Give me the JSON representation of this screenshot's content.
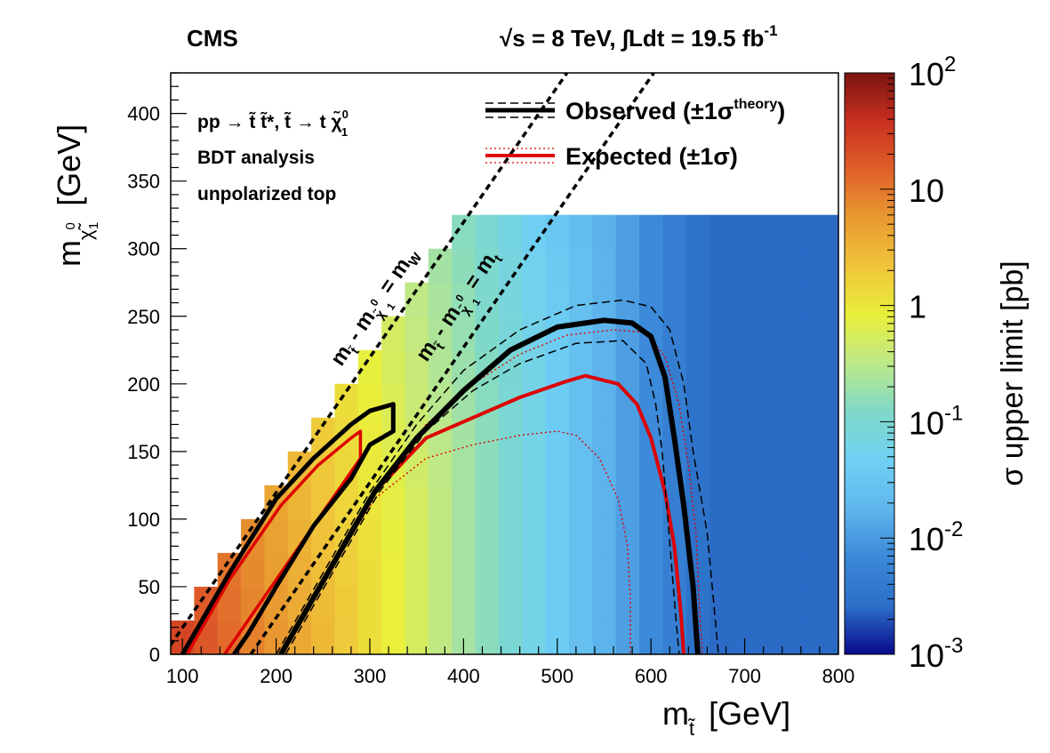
{
  "header": {
    "experiment": "CMS",
    "energy": "√s = 8 TeV, ∫Ldt = 19.5 fb",
    "lumi_exp": "-1"
  },
  "info": {
    "process_a": "pp → t̃ t̃*, t̃ → t χ̃",
    "process_sup": "0",
    "process_sub": "1",
    "line2": "BDT analysis",
    "line3": "unpolarized top"
  },
  "legend": {
    "observed": "Observed (±1σ",
    "observed_sup": "theory",
    "observed_end": ")",
    "expected": "Expected (±1σ)"
  },
  "diagonals": {
    "mw_a": "m",
    "mw_sub_stop": "t̃",
    "mw_b": " - m",
    "mw_sub_lsp": "χ̃",
    "mw_sup_lsp": "0",
    "mw_sub_1": "1",
    "mw_c": " = m",
    "mw_sub_w": "W",
    "mt_a": "m",
    "mt_sub_stop": "t̃",
    "mt_b": " - m",
    "mt_sub_lsp": "χ̃",
    "mt_sup_lsp": "0",
    "mt_sub_1": "1",
    "mt_c": " = m",
    "mt_sub_t": "t"
  },
  "colors": {
    "observed": "#000000",
    "expected": "#dd0000",
    "palette": [
      "#0a0a8c",
      "#2c6fc8",
      "#3b88d8",
      "#5fb6ec",
      "#6fd0f4",
      "#7fd9c8",
      "#bde88a",
      "#e9ef3a",
      "#f0c53a",
      "#e89a30",
      "#e0602a",
      "#c83020",
      "#7a1410"
    ]
  },
  "chart_data": {
    "type": "heatmap",
    "xlabel": "m",
    "xlabel_sub": "t̃",
    "xlabel_unit": "[GeV]",
    "ylabel": "m",
    "ylabel_sub": "χ̃",
    "ylabel_sup": "0",
    "ylabel_sub2": "1",
    "ylabel_unit": "[GeV]",
    "zlabel": "σ upper limit [pb]",
    "xlim": [
      87.5,
      800
    ],
    "ylim": [
      0,
      430
    ],
    "zlim": [
      0.001,
      100
    ],
    "zscale": "log",
    "x_ticks": [
      100,
      200,
      300,
      400,
      500,
      600,
      700,
      800
    ],
    "y_ticks": [
      0,
      50,
      100,
      150,
      200,
      250,
      300,
      350,
      400
    ],
    "z_ticks": [
      {
        "base": "10",
        "exp": "2",
        "value": 100
      },
      {
        "base": "10",
        "exp": "",
        "value": 10
      },
      {
        "base": "1",
        "exp": "",
        "value": 1
      },
      {
        "base": "10",
        "exp": "-1",
        "value": 0.1
      },
      {
        "base": "10",
        "exp": "-2",
        "value": 0.01
      },
      {
        "base": "10",
        "exp": "-3",
        "value": 0.001
      }
    ],
    "grid": {
      "x_min": 87.5,
      "x_max": 800,
      "x_step": 25,
      "y_min": 0,
      "y_max": 312.5,
      "y_step": 25
    },
    "observed": [
      [
        160,
        0
      ],
      [
        200,
        60
      ],
      [
        235,
        110
      ],
      [
        280,
        150
      ],
      [
        300,
        175
      ],
      [
        325,
        175
      ],
      [
        325,
        185
      ],
      [
        300,
        175
      ],
      [
        280,
        150
      ],
      [
        230,
        100
      ],
      [
        190,
        40
      ],
      [
        160,
        0
      ]
    ],
    "observed_main": [
      [
        205,
        0
      ],
      [
        255,
        60
      ],
      [
        305,
        120
      ],
      [
        350,
        160
      ],
      [
        400,
        195
      ],
      [
        450,
        225
      ],
      [
        500,
        242
      ],
      [
        550,
        247
      ],
      [
        580,
        245
      ],
      [
        600,
        235
      ],
      [
        615,
        205
      ],
      [
        625,
        160
      ],
      [
        635,
        110
      ],
      [
        645,
        50
      ],
      [
        650,
        0
      ]
    ],
    "observed_minus": [
      [
        210,
        0
      ],
      [
        260,
        60
      ],
      [
        310,
        120
      ],
      [
        360,
        165
      ],
      [
        410,
        195
      ],
      [
        460,
        215
      ],
      [
        520,
        230
      ],
      [
        570,
        232
      ],
      [
        595,
        215
      ],
      [
        605,
        185
      ],
      [
        612,
        150
      ],
      [
        618,
        100
      ],
      [
        625,
        40
      ],
      [
        630,
        0
      ]
    ],
    "observed_plus": [
      [
        200,
        0
      ],
      [
        250,
        60
      ],
      [
        300,
        120
      ],
      [
        350,
        170
      ],
      [
        400,
        210
      ],
      [
        460,
        240
      ],
      [
        520,
        258
      ],
      [
        570,
        262
      ],
      [
        600,
        257
      ],
      [
        620,
        240
      ],
      [
        635,
        200
      ],
      [
        645,
        150
      ],
      [
        660,
        90
      ],
      [
        668,
        30
      ],
      [
        672,
        0
      ]
    ],
    "observed_small": [
      [
        100,
        0
      ],
      [
        150,
        60
      ],
      [
        200,
        115
      ],
      [
        240,
        145
      ],
      [
        280,
        170
      ],
      [
        300,
        180
      ],
      [
        325,
        185
      ],
      [
        325,
        165
      ],
      [
        300,
        155
      ],
      [
        280,
        130
      ],
      [
        240,
        95
      ],
      [
        200,
        50
      ],
      [
        170,
        15
      ],
      [
        155,
        0
      ]
    ],
    "expected_small": [
      [
        105,
        0
      ],
      [
        150,
        55
      ],
      [
        205,
        110
      ],
      [
        245,
        140
      ],
      [
        280,
        160
      ],
      [
        290,
        165
      ],
      [
        290,
        145
      ],
      [
        270,
        125
      ],
      [
        240,
        95
      ],
      [
        200,
        55
      ],
      [
        160,
        15
      ],
      [
        145,
        0
      ]
    ],
    "expected_main": [
      [
        205,
        0
      ],
      [
        255,
        60
      ],
      [
        305,
        120
      ],
      [
        360,
        160
      ],
      [
        410,
        175
      ],
      [
        460,
        190
      ],
      [
        510,
        202
      ],
      [
        530,
        206
      ],
      [
        565,
        200
      ],
      [
        585,
        185
      ],
      [
        600,
        160
      ],
      [
        615,
        120
      ],
      [
        625,
        80
      ],
      [
        632,
        30
      ],
      [
        635,
        0
      ]
    ],
    "expected_minus": [
      [
        205,
        0
      ],
      [
        255,
        60
      ],
      [
        305,
        115
      ],
      [
        360,
        145
      ],
      [
        410,
        155
      ],
      [
        460,
        162
      ],
      [
        500,
        165
      ],
      [
        520,
        162
      ],
      [
        545,
        145
      ],
      [
        565,
        115
      ],
      [
        575,
        80
      ],
      [
        578,
        40
      ],
      [
        578,
        0
      ]
    ],
    "expected_plus": [
      [
        205,
        0
      ],
      [
        255,
        60
      ],
      [
        305,
        120
      ],
      [
        360,
        170
      ],
      [
        410,
        200
      ],
      [
        460,
        222
      ],
      [
        510,
        236
      ],
      [
        560,
        240
      ],
      [
        595,
        238
      ],
      [
        615,
        220
      ],
      [
        630,
        185
      ],
      [
        640,
        140
      ],
      [
        648,
        90
      ],
      [
        652,
        30
      ],
      [
        655,
        0
      ]
    ],
    "diag_mw": {
      "dm": 80.4
    },
    "diag_mt": {
      "dm": 173
    }
  }
}
